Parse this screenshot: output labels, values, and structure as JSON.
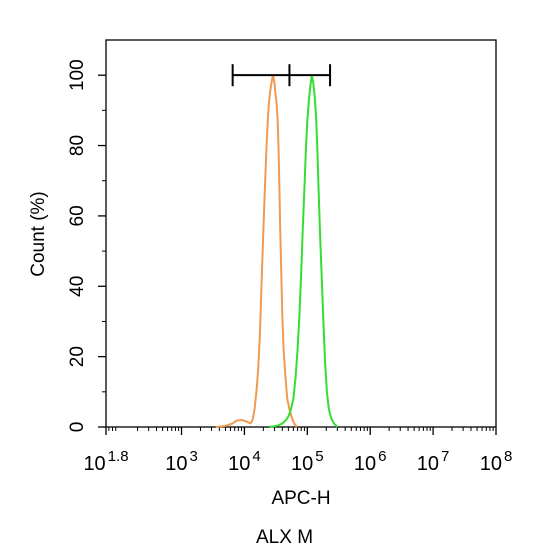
{
  "chart_data": {
    "type": "line",
    "title": "",
    "xlabel": "APC-H",
    "ylabel": "Count  (%)",
    "x_scale": "log",
    "xlim": [
      63,
      100000000
    ],
    "ylim": [
      0,
      110
    ],
    "x_ticks": [
      {
        "value": 63,
        "base": "10",
        "exp": "1.8"
      },
      {
        "value": 1000,
        "base": "10",
        "exp": "3"
      },
      {
        "value": 10000,
        "base": "10",
        "exp": "4"
      },
      {
        "value": 100000,
        "base": "10",
        "exp": "5"
      },
      {
        "value": 1000000,
        "base": "10",
        "exp": "6"
      },
      {
        "value": 10000000,
        "base": "10",
        "exp": "7"
      },
      {
        "value": 100000000,
        "base": "10",
        "exp": "8"
      }
    ],
    "y_ticks": [
      0,
      20,
      40,
      60,
      80,
      100
    ],
    "grid": false,
    "series": [
      {
        "color": "#f09a50",
        "points": [
          [
            3500,
            0
          ],
          [
            5000,
            0.3
          ],
          [
            6500,
            1
          ],
          [
            7500,
            1.8
          ],
          [
            9000,
            2
          ],
          [
            11000,
            1.5
          ],
          [
            12500,
            1
          ],
          [
            13500,
            2
          ],
          [
            14500,
            5
          ],
          [
            15500,
            10
          ],
          [
            16500,
            16
          ],
          [
            17500,
            25
          ],
          [
            18500,
            38
          ],
          [
            19500,
            50
          ],
          [
            20500,
            61
          ],
          [
            21500,
            71
          ],
          [
            22500,
            80
          ],
          [
            23500,
            87
          ],
          [
            24500,
            92
          ],
          [
            25500,
            95
          ],
          [
            27000,
            98
          ],
          [
            28500,
            100
          ],
          [
            30000,
            98
          ],
          [
            31000,
            95
          ],
          [
            32500,
            92
          ],
          [
            34000,
            86
          ],
          [
            35000,
            78
          ],
          [
            36000,
            68
          ],
          [
            37000,
            57
          ],
          [
            38500,
            44
          ],
          [
            40000,
            32
          ],
          [
            42000,
            22
          ],
          [
            45000,
            14
          ],
          [
            48000,
            8
          ],
          [
            52000,
            5
          ],
          [
            57000,
            2.5
          ],
          [
            62000,
            1
          ],
          [
            68000,
            0
          ]
        ]
      },
      {
        "color": "#33dd33",
        "points": [
          [
            25000,
            0
          ],
          [
            30000,
            0.2
          ],
          [
            35000,
            0.5
          ],
          [
            40000,
            1
          ],
          [
            45000,
            1.8
          ],
          [
            50000,
            3
          ],
          [
            55000,
            5
          ],
          [
            60000,
            8
          ],
          [
            65000,
            14
          ],
          [
            70000,
            22
          ],
          [
            75000,
            32
          ],
          [
            80000,
            44
          ],
          [
            85000,
            57
          ],
          [
            90000,
            68
          ],
          [
            95000,
            79
          ],
          [
            100000,
            87
          ],
          [
            106000,
            93
          ],
          [
            112000,
            97
          ],
          [
            118000,
            100
          ],
          [
            124000,
            98
          ],
          [
            131000,
            94
          ],
          [
            138000,
            88
          ],
          [
            145000,
            78
          ],
          [
            152000,
            66
          ],
          [
            160000,
            54
          ],
          [
            170000,
            42
          ],
          [
            180000,
            30
          ],
          [
            192000,
            18
          ],
          [
            205000,
            10
          ],
          [
            220000,
            5
          ],
          [
            240000,
            2.5
          ],
          [
            265000,
            1
          ],
          [
            300000,
            0
          ]
        ]
      }
    ],
    "annotations": {
      "gate_markers": [
        6500,
        52000,
        230000
      ],
      "gate_y": 100
    }
  },
  "clipped_text": "ALX M"
}
